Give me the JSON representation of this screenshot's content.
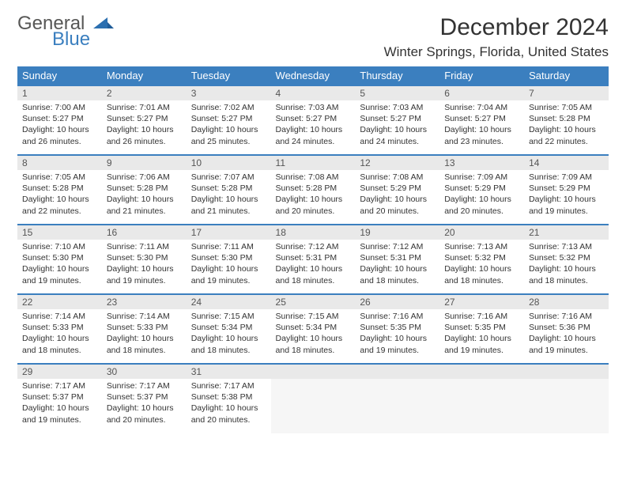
{
  "logo": {
    "text1": "General",
    "text2": "Blue"
  },
  "title": "December 2024",
  "location": "Winter Springs, Florida, United States",
  "colors": {
    "header_bg": "#3b7fbf",
    "header_text": "#ffffff",
    "daynum_bg": "#e9e9e9",
    "border": "#3b7fbf",
    "body_text": "#333333",
    "empty_bg": "#f6f6f6"
  },
  "day_headers": [
    "Sunday",
    "Monday",
    "Tuesday",
    "Wednesday",
    "Thursday",
    "Friday",
    "Saturday"
  ],
  "weeks": [
    [
      {
        "n": "1",
        "sunrise": "Sunrise: 7:00 AM",
        "sunset": "Sunset: 5:27 PM",
        "day1": "Daylight: 10 hours",
        "day2": "and 26 minutes."
      },
      {
        "n": "2",
        "sunrise": "Sunrise: 7:01 AM",
        "sunset": "Sunset: 5:27 PM",
        "day1": "Daylight: 10 hours",
        "day2": "and 26 minutes."
      },
      {
        "n": "3",
        "sunrise": "Sunrise: 7:02 AM",
        "sunset": "Sunset: 5:27 PM",
        "day1": "Daylight: 10 hours",
        "day2": "and 25 minutes."
      },
      {
        "n": "4",
        "sunrise": "Sunrise: 7:03 AM",
        "sunset": "Sunset: 5:27 PM",
        "day1": "Daylight: 10 hours",
        "day2": "and 24 minutes."
      },
      {
        "n": "5",
        "sunrise": "Sunrise: 7:03 AM",
        "sunset": "Sunset: 5:27 PM",
        "day1": "Daylight: 10 hours",
        "day2": "and 24 minutes."
      },
      {
        "n": "6",
        "sunrise": "Sunrise: 7:04 AM",
        "sunset": "Sunset: 5:27 PM",
        "day1": "Daylight: 10 hours",
        "day2": "and 23 minutes."
      },
      {
        "n": "7",
        "sunrise": "Sunrise: 7:05 AM",
        "sunset": "Sunset: 5:28 PM",
        "day1": "Daylight: 10 hours",
        "day2": "and 22 minutes."
      }
    ],
    [
      {
        "n": "8",
        "sunrise": "Sunrise: 7:05 AM",
        "sunset": "Sunset: 5:28 PM",
        "day1": "Daylight: 10 hours",
        "day2": "and 22 minutes."
      },
      {
        "n": "9",
        "sunrise": "Sunrise: 7:06 AM",
        "sunset": "Sunset: 5:28 PM",
        "day1": "Daylight: 10 hours",
        "day2": "and 21 minutes."
      },
      {
        "n": "10",
        "sunrise": "Sunrise: 7:07 AM",
        "sunset": "Sunset: 5:28 PM",
        "day1": "Daylight: 10 hours",
        "day2": "and 21 minutes."
      },
      {
        "n": "11",
        "sunrise": "Sunrise: 7:08 AM",
        "sunset": "Sunset: 5:28 PM",
        "day1": "Daylight: 10 hours",
        "day2": "and 20 minutes."
      },
      {
        "n": "12",
        "sunrise": "Sunrise: 7:08 AM",
        "sunset": "Sunset: 5:29 PM",
        "day1": "Daylight: 10 hours",
        "day2": "and 20 minutes."
      },
      {
        "n": "13",
        "sunrise": "Sunrise: 7:09 AM",
        "sunset": "Sunset: 5:29 PM",
        "day1": "Daylight: 10 hours",
        "day2": "and 20 minutes."
      },
      {
        "n": "14",
        "sunrise": "Sunrise: 7:09 AM",
        "sunset": "Sunset: 5:29 PM",
        "day1": "Daylight: 10 hours",
        "day2": "and 19 minutes."
      }
    ],
    [
      {
        "n": "15",
        "sunrise": "Sunrise: 7:10 AM",
        "sunset": "Sunset: 5:30 PM",
        "day1": "Daylight: 10 hours",
        "day2": "and 19 minutes."
      },
      {
        "n": "16",
        "sunrise": "Sunrise: 7:11 AM",
        "sunset": "Sunset: 5:30 PM",
        "day1": "Daylight: 10 hours",
        "day2": "and 19 minutes."
      },
      {
        "n": "17",
        "sunrise": "Sunrise: 7:11 AM",
        "sunset": "Sunset: 5:30 PM",
        "day1": "Daylight: 10 hours",
        "day2": "and 19 minutes."
      },
      {
        "n": "18",
        "sunrise": "Sunrise: 7:12 AM",
        "sunset": "Sunset: 5:31 PM",
        "day1": "Daylight: 10 hours",
        "day2": "and 18 minutes."
      },
      {
        "n": "19",
        "sunrise": "Sunrise: 7:12 AM",
        "sunset": "Sunset: 5:31 PM",
        "day1": "Daylight: 10 hours",
        "day2": "and 18 minutes."
      },
      {
        "n": "20",
        "sunrise": "Sunrise: 7:13 AM",
        "sunset": "Sunset: 5:32 PM",
        "day1": "Daylight: 10 hours",
        "day2": "and 18 minutes."
      },
      {
        "n": "21",
        "sunrise": "Sunrise: 7:13 AM",
        "sunset": "Sunset: 5:32 PM",
        "day1": "Daylight: 10 hours",
        "day2": "and 18 minutes."
      }
    ],
    [
      {
        "n": "22",
        "sunrise": "Sunrise: 7:14 AM",
        "sunset": "Sunset: 5:33 PM",
        "day1": "Daylight: 10 hours",
        "day2": "and 18 minutes."
      },
      {
        "n": "23",
        "sunrise": "Sunrise: 7:14 AM",
        "sunset": "Sunset: 5:33 PM",
        "day1": "Daylight: 10 hours",
        "day2": "and 18 minutes."
      },
      {
        "n": "24",
        "sunrise": "Sunrise: 7:15 AM",
        "sunset": "Sunset: 5:34 PM",
        "day1": "Daylight: 10 hours",
        "day2": "and 18 minutes."
      },
      {
        "n": "25",
        "sunrise": "Sunrise: 7:15 AM",
        "sunset": "Sunset: 5:34 PM",
        "day1": "Daylight: 10 hours",
        "day2": "and 18 minutes."
      },
      {
        "n": "26",
        "sunrise": "Sunrise: 7:16 AM",
        "sunset": "Sunset: 5:35 PM",
        "day1": "Daylight: 10 hours",
        "day2": "and 19 minutes."
      },
      {
        "n": "27",
        "sunrise": "Sunrise: 7:16 AM",
        "sunset": "Sunset: 5:35 PM",
        "day1": "Daylight: 10 hours",
        "day2": "and 19 minutes."
      },
      {
        "n": "28",
        "sunrise": "Sunrise: 7:16 AM",
        "sunset": "Sunset: 5:36 PM",
        "day1": "Daylight: 10 hours",
        "day2": "and 19 minutes."
      }
    ],
    [
      {
        "n": "29",
        "sunrise": "Sunrise: 7:17 AM",
        "sunset": "Sunset: 5:37 PM",
        "day1": "Daylight: 10 hours",
        "day2": "and 19 minutes."
      },
      {
        "n": "30",
        "sunrise": "Sunrise: 7:17 AM",
        "sunset": "Sunset: 5:37 PM",
        "day1": "Daylight: 10 hours",
        "day2": "and 20 minutes."
      },
      {
        "n": "31",
        "sunrise": "Sunrise: 7:17 AM",
        "sunset": "Sunset: 5:38 PM",
        "day1": "Daylight: 10 hours",
        "day2": "and 20 minutes."
      },
      null,
      null,
      null,
      null
    ]
  ]
}
